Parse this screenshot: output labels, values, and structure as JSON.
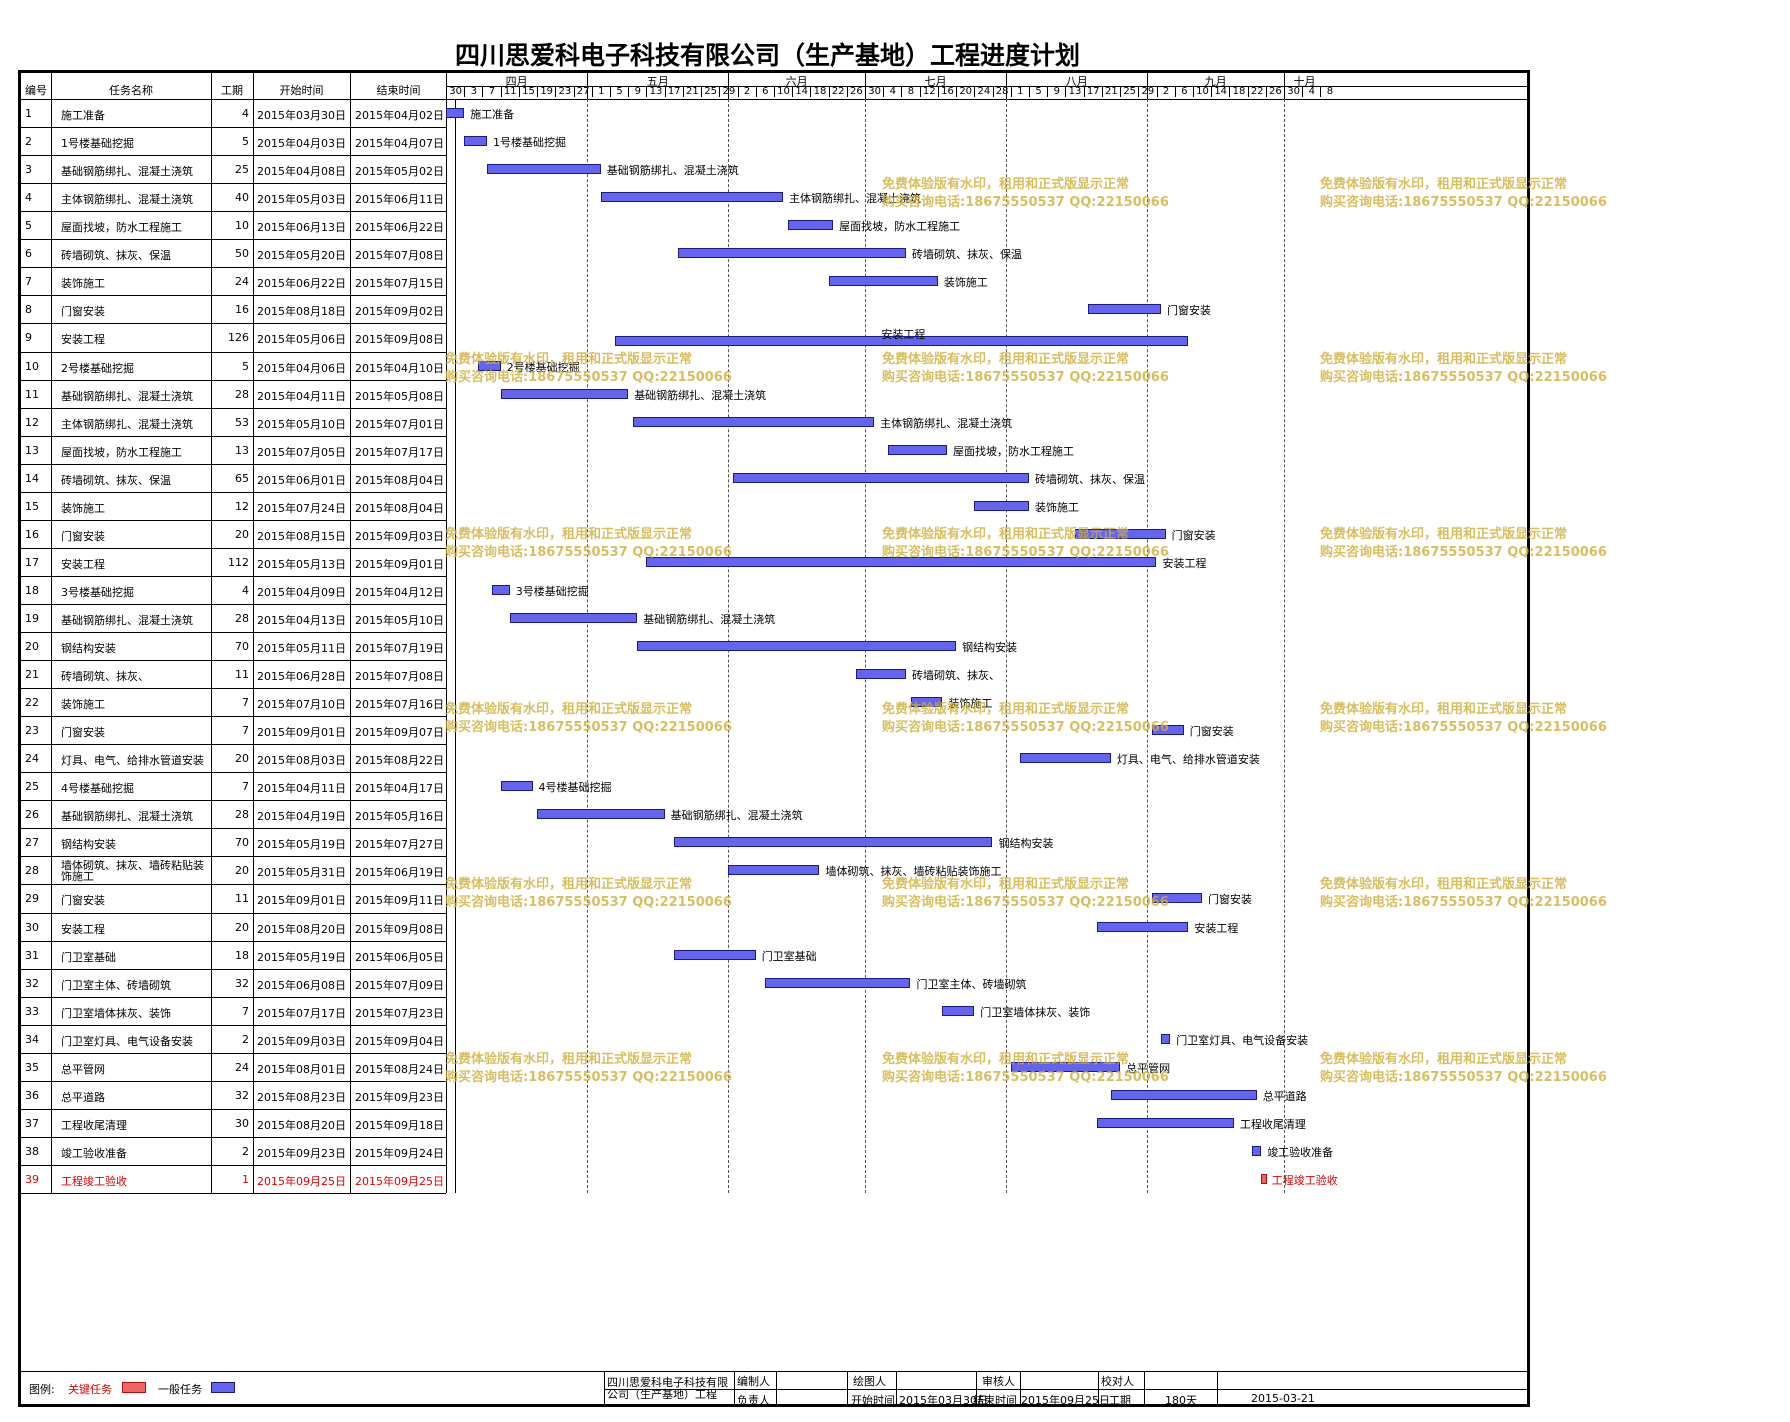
{
  "title": "四川思爱科电子科技有限公司（生产基地）工程进度计划",
  "headers": {
    "id": "编号",
    "name": "任务名称",
    "dur": "工期",
    "start": "开始时间",
    "end": "结束时间"
  },
  "months": [
    {
      "label": "四月",
      "start": "2015-03-30"
    },
    {
      "label": "五月",
      "start": "2015-04-30"
    },
    {
      "label": "六月",
      "start": "2015-05-31"
    },
    {
      "label": "七月",
      "start": "2015-06-30"
    },
    {
      "label": "八月",
      "start": "2015-07-31"
    },
    {
      "label": "九月",
      "start": "2015-08-31"
    },
    {
      "label": "十月",
      "start": "2015-09-30"
    }
  ],
  "timeline": {
    "start": "2015-03-30",
    "end": "2015-10-09",
    "tick_days": 4
  },
  "day_ticks": [
    "30",
    "3",
    "7",
    "11",
    "15",
    "19",
    "23",
    "27",
    "1",
    "5",
    "9",
    "13",
    "17",
    "21",
    "25",
    "29",
    "2",
    "6",
    "10",
    "14",
    "18",
    "22",
    "26",
    "30",
    "4",
    "8",
    "12",
    "16",
    "20",
    "24",
    "28",
    "1",
    "5",
    "9",
    "13",
    "17",
    "21",
    "25",
    "29",
    "2",
    "6",
    "10",
    "14",
    "18",
    "22",
    "26",
    "30",
    "4",
    "8"
  ],
  "chart_data": {
    "type": "gantt",
    "title": "四川思爱科电子科技有限公司（生产基地）工程进度计划",
    "tasks": [
      {
        "id": "1",
        "name": "施工准备",
        "dur": "4",
        "start": "2015年03月30日",
        "end": "2015年04月02日",
        "s": "2015-03-30",
        "e": "2015-04-02",
        "critical": false
      },
      {
        "id": "2",
        "name": "1号楼基础挖掘",
        "dur": "5",
        "start": "2015年04月03日",
        "end": "2015年04月07日",
        "s": "2015-04-03",
        "e": "2015-04-07",
        "critical": false
      },
      {
        "id": "3",
        "name": "基础钢筋绑扎、混凝土浇筑",
        "dur": "25",
        "start": "2015年04月08日",
        "end": "2015年05月02日",
        "s": "2015-04-08",
        "e": "2015-05-02",
        "critical": false
      },
      {
        "id": "4",
        "name": "主体钢筋绑扎、混凝土浇筑",
        "dur": "40",
        "start": "2015年05月03日",
        "end": "2015年06月11日",
        "s": "2015-05-03",
        "e": "2015-06-11",
        "critical": false
      },
      {
        "id": "5",
        "name": "屋面找坡，防水工程施工",
        "dur": "10",
        "start": "2015年06月13日",
        "end": "2015年06月22日",
        "s": "2015-06-13",
        "e": "2015-06-22",
        "critical": false
      },
      {
        "id": "6",
        "name": "砖墙砌筑、抹灰、保温",
        "dur": "50",
        "start": "2015年05月20日",
        "end": "2015年07月08日",
        "s": "2015-05-20",
        "e": "2015-07-08",
        "critical": false
      },
      {
        "id": "7",
        "name": "装饰施工",
        "dur": "24",
        "start": "2015年06月22日",
        "end": "2015年07月15日",
        "s": "2015-06-22",
        "e": "2015-07-15",
        "critical": false
      },
      {
        "id": "8",
        "name": "门窗安装",
        "dur": "16",
        "start": "2015年08月18日",
        "end": "2015年09月02日",
        "s": "2015-08-18",
        "e": "2015-09-02",
        "critical": false
      },
      {
        "id": "9",
        "name": "安装工程",
        "dur": "126",
        "start": "2015年05月06日",
        "end": "2015年09月08日",
        "s": "2015-05-06",
        "e": "2015-09-08",
        "critical": false
      },
      {
        "id": "10",
        "name": "2号楼基础挖掘",
        "dur": "5",
        "start": "2015年04月06日",
        "end": "2015年04月10日",
        "s": "2015-04-06",
        "e": "2015-04-10",
        "critical": false
      },
      {
        "id": "11",
        "name": "基础钢筋绑扎、混凝土浇筑",
        "dur": "28",
        "start": "2015年04月11日",
        "end": "2015年05月08日",
        "s": "2015-04-11",
        "e": "2015-05-08",
        "critical": false
      },
      {
        "id": "12",
        "name": "主体钢筋绑扎、混凝土浇筑",
        "dur": "53",
        "start": "2015年05月10日",
        "end": "2015年07月01日",
        "s": "2015-05-10",
        "e": "2015-07-01",
        "critical": false
      },
      {
        "id": "13",
        "name": "屋面找坡，防水工程施工",
        "dur": "13",
        "start": "2015年07月05日",
        "end": "2015年07月17日",
        "s": "2015-07-05",
        "e": "2015-07-17",
        "critical": false
      },
      {
        "id": "14",
        "name": "砖墙砌筑、抹灰、保温",
        "dur": "65",
        "start": "2015年06月01日",
        "end": "2015年08月04日",
        "s": "2015-06-01",
        "e": "2015-08-04",
        "critical": false
      },
      {
        "id": "15",
        "name": "装饰施工",
        "dur": "12",
        "start": "2015年07月24日",
        "end": "2015年08月04日",
        "s": "2015-07-24",
        "e": "2015-08-04",
        "critical": false
      },
      {
        "id": "16",
        "name": "门窗安装",
        "dur": "20",
        "start": "2015年08月15日",
        "end": "2015年09月03日",
        "s": "2015-08-15",
        "e": "2015-09-03",
        "critical": false
      },
      {
        "id": "17",
        "name": "安装工程",
        "dur": "112",
        "start": "2015年05月13日",
        "end": "2015年09月01日",
        "s": "2015-05-13",
        "e": "2015-09-01",
        "critical": false
      },
      {
        "id": "18",
        "name": "3号楼基础挖掘",
        "dur": "4",
        "start": "2015年04月09日",
        "end": "2015年04月12日",
        "s": "2015-04-09",
        "e": "2015-04-12",
        "critical": false
      },
      {
        "id": "19",
        "name": "基础钢筋绑扎、混凝土浇筑",
        "dur": "28",
        "start": "2015年04月13日",
        "end": "2015年05月10日",
        "s": "2015-04-13",
        "e": "2015-05-10",
        "critical": false
      },
      {
        "id": "20",
        "name": "钢结构安装",
        "dur": "70",
        "start": "2015年05月11日",
        "end": "2015年07月19日",
        "s": "2015-05-11",
        "e": "2015-07-19",
        "critical": false
      },
      {
        "id": "21",
        "name": "砖墙砌筑、抹灰、",
        "dur": "11",
        "start": "2015年06月28日",
        "end": "2015年07月08日",
        "s": "2015-06-28",
        "e": "2015-07-08",
        "critical": false
      },
      {
        "id": "22",
        "name": "装饰施工",
        "dur": "7",
        "start": "2015年07月10日",
        "end": "2015年07月16日",
        "s": "2015-07-10",
        "e": "2015-07-16",
        "critical": false
      },
      {
        "id": "23",
        "name": "门窗安装",
        "dur": "7",
        "start": "2015年09月01日",
        "end": "2015年09月07日",
        "s": "2015-09-01",
        "e": "2015-09-07",
        "critical": false
      },
      {
        "id": "24",
        "name": "灯具、电气、给排水管道安装",
        "dur": "20",
        "start": "2015年08月03日",
        "end": "2015年08月22日",
        "s": "2015-08-03",
        "e": "2015-08-22",
        "critical": false
      },
      {
        "id": "25",
        "name": "4号楼基础挖掘",
        "dur": "7",
        "start": "2015年04月11日",
        "end": "2015年04月17日",
        "s": "2015-04-11",
        "e": "2015-04-17",
        "critical": false
      },
      {
        "id": "26",
        "name": "基础钢筋绑扎、混凝土浇筑",
        "dur": "28",
        "start": "2015年04月19日",
        "end": "2015年05月16日",
        "s": "2015-04-19",
        "e": "2015-05-16",
        "critical": false
      },
      {
        "id": "27",
        "name": "钢结构安装",
        "dur": "70",
        "start": "2015年05月19日",
        "end": "2015年07月27日",
        "s": "2015-05-19",
        "e": "2015-07-27",
        "critical": false
      },
      {
        "id": "28",
        "name": "墙体砌筑、抹灰、墙砖粘贴装饰施工",
        "dur": "20",
        "start": "2015年05月31日",
        "end": "2015年06月19日",
        "s": "2015-05-31",
        "e": "2015-06-19",
        "critical": false
      },
      {
        "id": "29",
        "name": "门窗安装",
        "dur": "11",
        "start": "2015年09月01日",
        "end": "2015年09月11日",
        "s": "2015-09-01",
        "e": "2015-09-11",
        "critical": false
      },
      {
        "id": "30",
        "name": "安装工程",
        "dur": "20",
        "start": "2015年08月20日",
        "end": "2015年09月08日",
        "s": "2015-08-20",
        "e": "2015-09-08",
        "critical": false
      },
      {
        "id": "31",
        "name": "门卫室基础",
        "dur": "18",
        "start": "2015年05月19日",
        "end": "2015年06月05日",
        "s": "2015-05-19",
        "e": "2015-06-05",
        "critical": false
      },
      {
        "id": "32",
        "name": "门卫室主体、砖墙砌筑",
        "dur": "32",
        "start": "2015年06月08日",
        "end": "2015年07月09日",
        "s": "2015-06-08",
        "e": "2015-07-09",
        "critical": false
      },
      {
        "id": "33",
        "name": "门卫室墙体抹灰、装饰",
        "dur": "7",
        "start": "2015年07月17日",
        "end": "2015年07月23日",
        "s": "2015-07-17",
        "e": "2015-07-23",
        "critical": false
      },
      {
        "id": "34",
        "name": "门卫室灯具、电气设备安装",
        "dur": "2",
        "start": "2015年09月03日",
        "end": "2015年09月04日",
        "s": "2015-09-03",
        "e": "2015-09-04",
        "critical": false
      },
      {
        "id": "35",
        "name": "总平管网",
        "dur": "24",
        "start": "2015年08月01日",
        "end": "2015年08月24日",
        "s": "2015-08-01",
        "e": "2015-08-24",
        "critical": false
      },
      {
        "id": "36",
        "name": "总平道路",
        "dur": "32",
        "start": "2015年08月23日",
        "end": "2015年09月23日",
        "s": "2015-08-23",
        "e": "2015-09-23",
        "critical": false
      },
      {
        "id": "37",
        "name": "工程收尾清理",
        "dur": "30",
        "start": "2015年08月20日",
        "end": "2015年09月18日",
        "s": "2015-08-20",
        "e": "2015-09-18",
        "critical": false
      },
      {
        "id": "38",
        "name": "竣工验收准备",
        "dur": "2",
        "start": "2015年09月23日",
        "end": "2015年09月24日",
        "s": "2015-09-23",
        "e": "2015-09-24",
        "critical": false
      },
      {
        "id": "39",
        "name": "工程竣工验收",
        "dur": "1",
        "start": "2015年09月25日",
        "end": "2015年09月25日",
        "s": "2015-09-25",
        "e": "2015-09-25",
        "critical": true
      }
    ]
  },
  "legend": {
    "label": "图例:",
    "critical": "关键任务",
    "normal": "一般任务",
    "critical_color": "#f06464",
    "normal_color": "#6464f0"
  },
  "footer": {
    "company": "四川思爱科电子科技有限公司（生产基地）工程",
    "editor_label": "编制人",
    "drawer_label": "绘图人",
    "reviewer_label": "审核人",
    "checker_label": "校对人",
    "owner_label": "负责人",
    "start_label": "开始时间",
    "start_value": "2015年03月30日",
    "end_label": "结束时间",
    "end_value": "2015年09月25日",
    "period_label": "工期",
    "period_value": "180天",
    "date": "2015-03-21"
  },
  "watermark": {
    "line1": "免费体验版有水印，租用和正式版显示正常",
    "line2": "购买咨询电话:18675550537 QQ:22150066"
  }
}
